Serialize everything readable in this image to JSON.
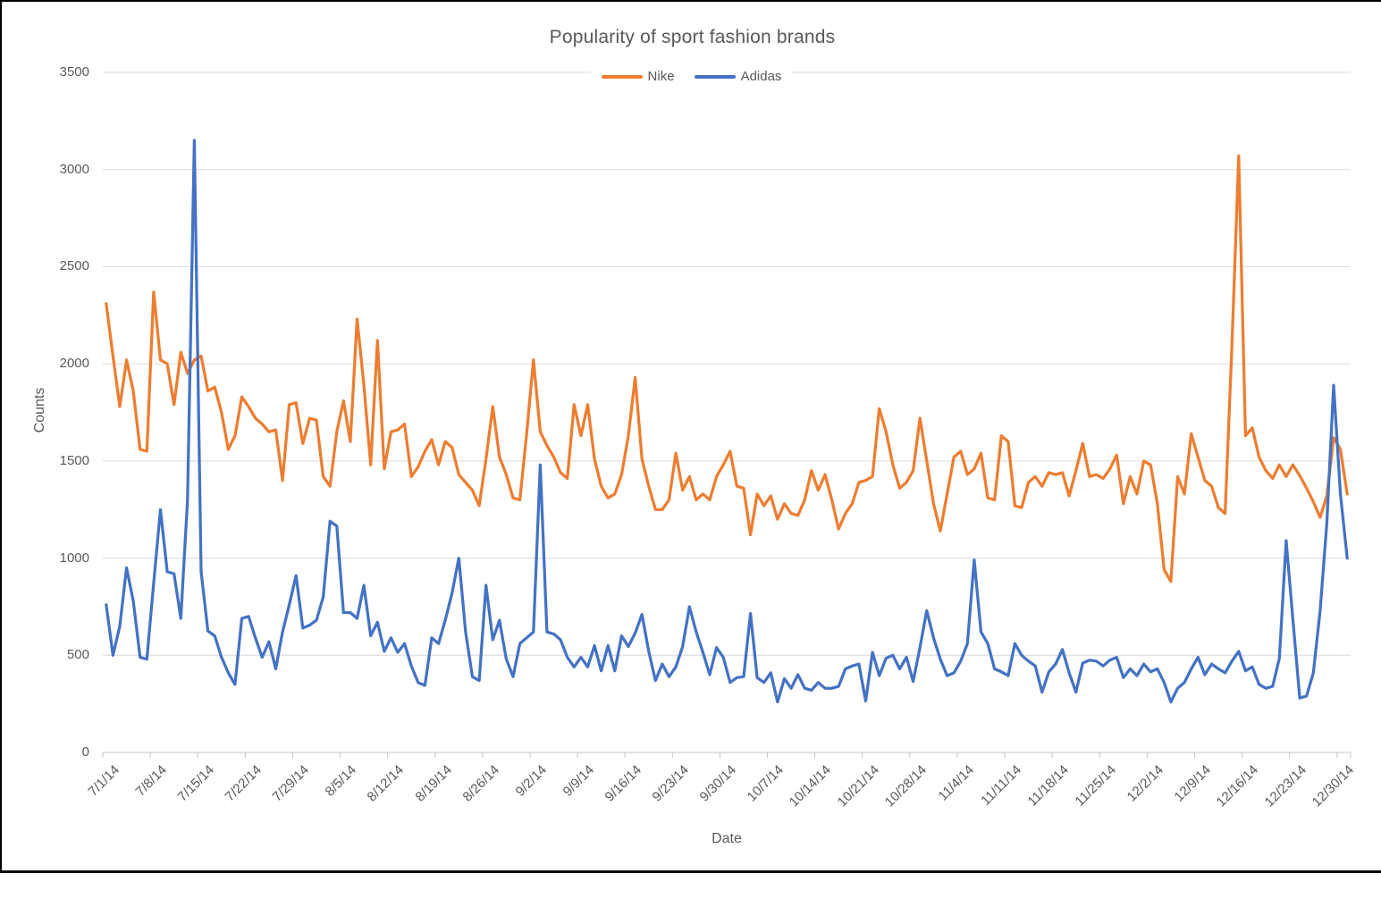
{
  "window": {
    "background": "#ffffff",
    "border_color": "#000000"
  },
  "chart_data": {
    "type": "line",
    "title": "Popularity of sport fashion brands",
    "xlabel": "Date",
    "ylabel": "Counts",
    "ylim": [
      0,
      3500
    ],
    "y_ticks": [
      0,
      500,
      1000,
      1500,
      2000,
      2500,
      3000,
      3500
    ],
    "grid": true,
    "legend_position": "top-center",
    "x_frequency": "daily",
    "x_tick_interval_days": 7,
    "x_tick_labels": [
      "7/1/14",
      "7/8/14",
      "7/15/14",
      "7/22/14",
      "7/29/14",
      "8/5/14",
      "8/12/14",
      "8/19/14",
      "8/26/14",
      "9/2/14",
      "9/9/14",
      "9/16/14",
      "9/23/14",
      "9/30/14",
      "10/7/14",
      "10/14/14",
      "10/21/14",
      "10/28/14",
      "11/4/14",
      "11/11/14",
      "11/18/14",
      "11/25/14",
      "12/2/14",
      "12/9/14",
      "12/16/14",
      "12/23/14",
      "12/30/14"
    ],
    "dates": [
      "7/1/14",
      "7/2/14",
      "7/3/14",
      "7/4/14",
      "7/5/14",
      "7/6/14",
      "7/7/14",
      "7/8/14",
      "7/9/14",
      "7/10/14",
      "7/11/14",
      "7/12/14",
      "7/13/14",
      "7/14/14",
      "7/15/14",
      "7/16/14",
      "7/17/14",
      "7/18/14",
      "7/19/14",
      "7/20/14",
      "7/21/14",
      "7/22/14",
      "7/23/14",
      "7/24/14",
      "7/25/14",
      "7/26/14",
      "7/27/14",
      "7/28/14",
      "7/29/14",
      "7/30/14",
      "7/31/14",
      "8/1/14",
      "8/2/14",
      "8/3/14",
      "8/4/14",
      "8/5/14",
      "8/6/14",
      "8/7/14",
      "8/8/14",
      "8/9/14",
      "8/10/14",
      "8/11/14",
      "8/12/14",
      "8/13/14",
      "8/14/14",
      "8/15/14",
      "8/16/14",
      "8/17/14",
      "8/18/14",
      "8/19/14",
      "8/20/14",
      "8/21/14",
      "8/22/14",
      "8/23/14",
      "8/24/14",
      "8/25/14",
      "8/26/14",
      "8/27/14",
      "8/28/14",
      "8/29/14",
      "8/30/14",
      "8/31/14",
      "9/1/14",
      "9/2/14",
      "9/3/14",
      "9/4/14",
      "9/5/14",
      "9/6/14",
      "9/7/14",
      "9/8/14",
      "9/9/14",
      "9/10/14",
      "9/11/14",
      "9/12/14",
      "9/13/14",
      "9/14/14",
      "9/15/14",
      "9/16/14",
      "9/17/14",
      "9/18/14",
      "9/19/14",
      "9/20/14",
      "9/21/14",
      "9/22/14",
      "9/23/14",
      "9/24/14",
      "9/25/14",
      "9/26/14",
      "9/27/14",
      "9/28/14",
      "9/29/14",
      "9/30/14",
      "10/1/14",
      "10/2/14",
      "10/3/14",
      "10/4/14",
      "10/5/14",
      "10/6/14",
      "10/7/14",
      "10/8/14",
      "10/9/14",
      "10/10/14",
      "10/11/14",
      "10/12/14",
      "10/13/14",
      "10/14/14",
      "10/15/14",
      "10/16/14",
      "10/17/14",
      "10/18/14",
      "10/19/14",
      "10/20/14",
      "10/21/14",
      "10/22/14",
      "10/23/14",
      "10/24/14",
      "10/25/14",
      "10/26/14",
      "10/27/14",
      "10/28/14",
      "10/29/14",
      "10/30/14",
      "10/31/14",
      "11/1/14",
      "11/2/14",
      "11/3/14",
      "11/4/14",
      "11/5/14",
      "11/6/14",
      "11/7/14",
      "11/8/14",
      "11/9/14",
      "11/10/14",
      "11/11/14",
      "11/12/14",
      "11/13/14",
      "11/14/14",
      "11/15/14",
      "11/16/14",
      "11/17/14",
      "11/18/14",
      "11/19/14",
      "11/20/14",
      "11/21/14",
      "11/22/14",
      "11/23/14",
      "11/24/14",
      "11/25/14",
      "11/26/14",
      "11/27/14",
      "11/28/14",
      "11/29/14",
      "11/30/14",
      "12/1/14",
      "12/2/14",
      "12/3/14",
      "12/4/14",
      "12/5/14",
      "12/6/14",
      "12/7/14",
      "12/8/14",
      "12/9/14",
      "12/10/14",
      "12/11/14",
      "12/12/14",
      "12/13/14",
      "12/14/14",
      "12/15/14",
      "12/16/14",
      "12/17/14",
      "12/18/14",
      "12/19/14",
      "12/20/14",
      "12/21/14",
      "12/22/14",
      "12/23/14",
      "12/24/14",
      "12/25/14",
      "12/26/14",
      "12/27/14",
      "12/28/14",
      "12/29/14",
      "12/30/14",
      "12/31/14"
    ],
    "series": [
      {
        "name": "Nike",
        "color": "#ED7D31",
        "values": [
          2310,
          2040,
          1780,
          2020,
          1860,
          1560,
          1550,
          2370,
          2020,
          2000,
          1790,
          2060,
          1950,
          2020,
          2040,
          1860,
          1880,
          1750,
          1560,
          1630,
          1830,
          1780,
          1720,
          1690,
          1650,
          1660,
          1400,
          1790,
          1800,
          1590,
          1720,
          1710,
          1420,
          1370,
          1650,
          1810,
          1600,
          2230,
          1890,
          1480,
          2120,
          1460,
          1650,
          1660,
          1690,
          1420,
          1470,
          1550,
          1610,
          1480,
          1600,
          1570,
          1430,
          1390,
          1350,
          1270,
          1510,
          1780,
          1520,
          1430,
          1310,
          1300,
          1640,
          2020,
          1650,
          1580,
          1520,
          1440,
          1410,
          1790,
          1630,
          1790,
          1510,
          1370,
          1310,
          1330,
          1430,
          1630,
          1930,
          1510,
          1370,
          1250,
          1250,
          1300,
          1540,
          1350,
          1420,
          1300,
          1330,
          1300,
          1420,
          1480,
          1550,
          1370,
          1360,
          1120,
          1330,
          1270,
          1320,
          1200,
          1280,
          1230,
          1220,
          1300,
          1450,
          1350,
          1430,
          1300,
          1150,
          1230,
          1280,
          1390,
          1400,
          1420,
          1770,
          1650,
          1480,
          1360,
          1390,
          1450,
          1720,
          1500,
          1280,
          1140,
          1330,
          1520,
          1550,
          1430,
          1460,
          1540,
          1310,
          1300,
          1630,
          1600,
          1270,
          1260,
          1390,
          1420,
          1370,
          1440,
          1430,
          1440,
          1320,
          1450,
          1590,
          1420,
          1430,
          1410,
          1460,
          1530,
          1280,
          1420,
          1330,
          1500,
          1480,
          1280,
          940,
          880,
          1420,
          1330,
          1640,
          1520,
          1400,
          1370,
          1260,
          1230,
          2090,
          3070,
          1630,
          1670,
          1520,
          1450,
          1410,
          1480,
          1420,
          1480,
          1425,
          1360,
          1290,
          1210,
          1320,
          1620,
          1560,
          1330
        ]
      },
      {
        "name": "Adidas",
        "color": "#4472C4",
        "values": [
          760,
          500,
          650,
          950,
          780,
          490,
          480,
          870,
          1250,
          930,
          920,
          690,
          1300,
          3150,
          930,
          625,
          600,
          490,
          410,
          350,
          690,
          700,
          590,
          490,
          570,
          430,
          620,
          760,
          910,
          640,
          655,
          680,
          800,
          1190,
          1165,
          720,
          720,
          690,
          860,
          600,
          670,
          520,
          590,
          515,
          560,
          445,
          360,
          345,
          590,
          560,
          680,
          820,
          1000,
          620,
          390,
          370,
          860,
          580,
          680,
          480,
          390,
          560,
          590,
          620,
          1480,
          620,
          610,
          580,
          490,
          440,
          490,
          440,
          550,
          420,
          550,
          420,
          600,
          545,
          615,
          710,
          520,
          370,
          455,
          390,
          440,
          545,
          750,
          620,
          515,
          400,
          540,
          490,
          360,
          385,
          390,
          715,
          385,
          360,
          410,
          260,
          380,
          330,
          400,
          330,
          320,
          360,
          330,
          330,
          340,
          430,
          445,
          455,
          265,
          515,
          395,
          485,
          500,
          430,
          490,
          365,
          540,
          730,
          590,
          480,
          395,
          410,
          470,
          560,
          990,
          620,
          560,
          430,
          415,
          395,
          560,
          500,
          470,
          445,
          310,
          415,
          455,
          530,
          410,
          310,
          460,
          475,
          470,
          445,
          475,
          490,
          385,
          430,
          395,
          455,
          415,
          430,
          360,
          260,
          330,
          360,
          430,
          490,
          400,
          455,
          430,
          410,
          470,
          520,
          420,
          440,
          350,
          330,
          340,
          485,
          1090,
          680,
          280,
          290,
          410,
          730,
          1180,
          1890,
          1330,
          1000
        ]
      }
    ],
    "style": {
      "gridline_color": "#D9D9D9",
      "axis_line_color": "#C6C6C6",
      "text_color": "#595959",
      "line_width": 3.25
    }
  }
}
